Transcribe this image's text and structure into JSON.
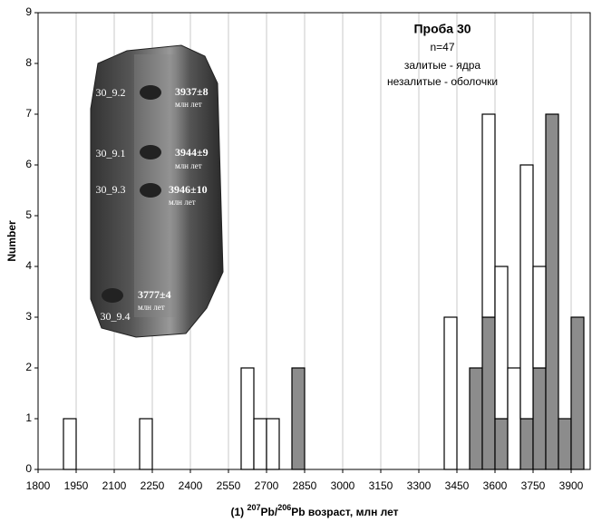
{
  "chart_data": {
    "type": "histogram",
    "title": "Проба 30",
    "subtitle": "n=47",
    "y_label": "Number",
    "x_label": {
      "prefix": "(1) ",
      "iso1": "207",
      "el1": "Pb/",
      "iso2": "206",
      "el2": "Pb возраст, млн лет"
    },
    "bins": [
      1900,
      1950,
      2000,
      2050,
      2100,
      2150,
      2200,
      2250,
      2300,
      2350,
      2400,
      2450,
      2500,
      2550,
      2600,
      2650,
      2700,
      2750,
      2800,
      2850,
      2900,
      2950,
      3000,
      3050,
      3100,
      3150,
      3200,
      3250,
      3300,
      3350,
      3400,
      3450,
      3500,
      3550,
      3600,
      3650,
      3700,
      3750,
      3800,
      3850,
      3900,
      3950
    ],
    "series": [
      {
        "name": "залитые - ядра",
        "color": "#8c8c8c",
        "values": [
          0,
          0,
          0,
          0,
          0,
          0,
          0,
          0,
          0,
          0,
          0,
          0,
          0,
          0,
          0,
          0,
          0,
          0,
          2,
          0,
          0,
          0,
          0,
          0,
          0,
          0,
          0,
          0,
          0,
          0,
          0,
          0,
          2,
          3,
          1,
          0,
          1,
          2,
          7,
          1,
          3
        ]
      },
      {
        "name": "незалитые - оболочки",
        "color": "#ffffff",
        "values": [
          1,
          0,
          0,
          0,
          0,
          0,
          1,
          0,
          0,
          0,
          0,
          0,
          0,
          0,
          2,
          1,
          1,
          0,
          0,
          0,
          0,
          0,
          0,
          0,
          0,
          0,
          0,
          0,
          0,
          0,
          3,
          0,
          0,
          4,
          3,
          2,
          5,
          2,
          0,
          0,
          0
        ]
      }
    ],
    "stacked": true,
    "xlim": [
      1800,
      3975
    ],
    "ylim": [
      0,
      9
    ],
    "xticks": [
      1800,
      1950,
      2100,
      2250,
      2400,
      2550,
      2700,
      2850,
      3000,
      3150,
      3300,
      3450,
      3600,
      3750,
      3900
    ],
    "yticks": [
      0,
      1,
      2,
      3,
      4,
      5,
      6,
      7,
      8,
      9
    ],
    "grid": "x",
    "inset": {
      "spots": [
        {
          "label": "30_9.2",
          "age": "3937±8",
          "unit": "млн лет"
        },
        {
          "label": "30_9.1",
          "age": "3944±9",
          "unit": "млн лет"
        },
        {
          "label": "30_9.3",
          "age": "3946±10",
          "unit": "млн лет"
        },
        {
          "label": "30_9.4",
          "age": "3777±4",
          "unit": "млн лет"
        }
      ]
    }
  }
}
